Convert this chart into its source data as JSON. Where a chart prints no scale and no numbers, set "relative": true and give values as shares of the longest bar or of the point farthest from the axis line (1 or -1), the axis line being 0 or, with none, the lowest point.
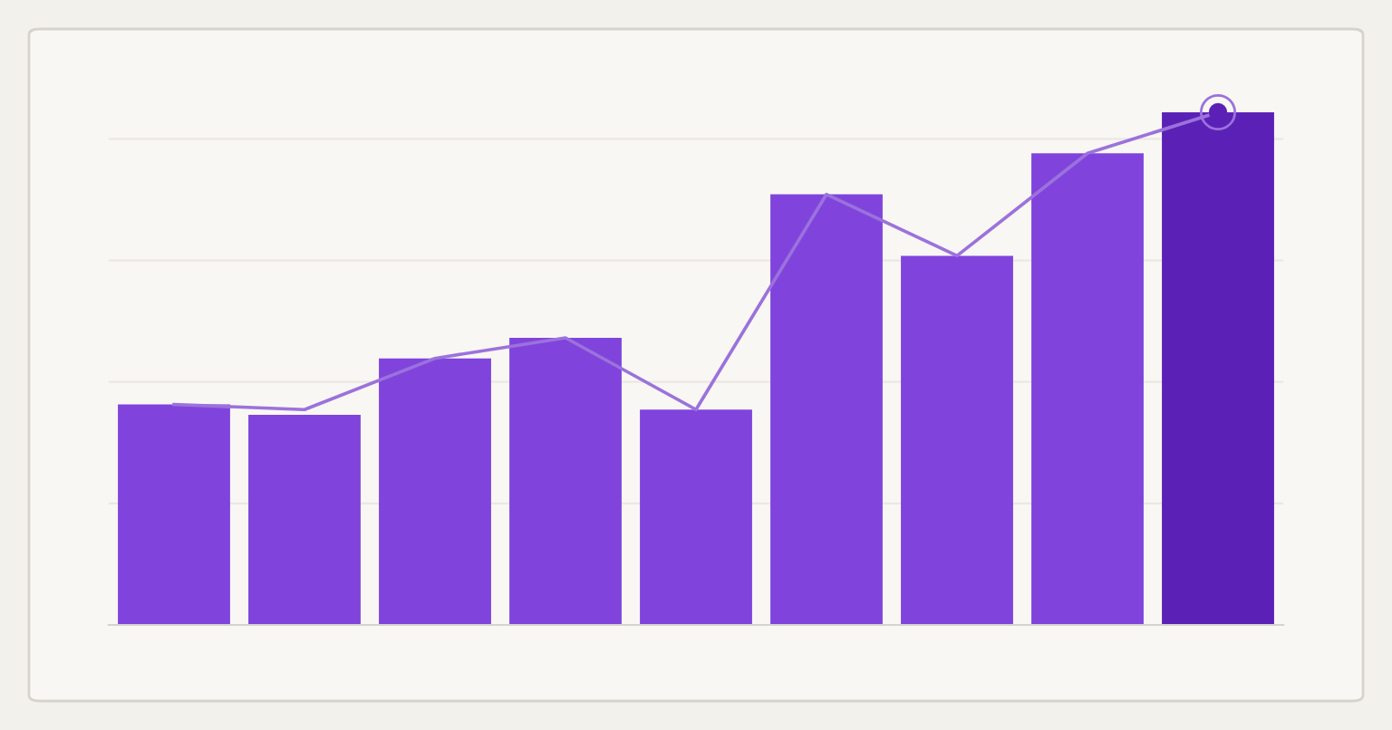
{
  "chart_data": [
    {
      "type": "bar",
      "relative": true,
      "grid": "y",
      "categories": [
        null,
        null,
        null,
        null,
        null,
        null,
        null,
        null,
        null
      ],
      "series": [
        {
          "colors": [
            "#8044dd",
            "#8044dd",
            "#8044dd",
            "#8044dd",
            "#8044dd",
            "#8044dd",
            "#8044dd",
            "#8044dd",
            "#5b21b6"
          ],
          "values": [
            0.43,
            0.41,
            0.52,
            0.56,
            0.42,
            0.84,
            0.72,
            0.92,
            1.0
          ]
        }
      ]
    },
    {
      "type": "line",
      "relative": true,
      "categories": [
        null,
        null,
        null,
        null,
        null,
        null,
        null,
        null,
        null
      ],
      "series": [
        {
          "color": "#9b72dc",
          "values": [
            0.43,
            0.42,
            0.52,
            0.56,
            0.42,
            0.84,
            0.72,
            0.92,
            1.0
          ]
        }
      ]
    }
  ]
}
